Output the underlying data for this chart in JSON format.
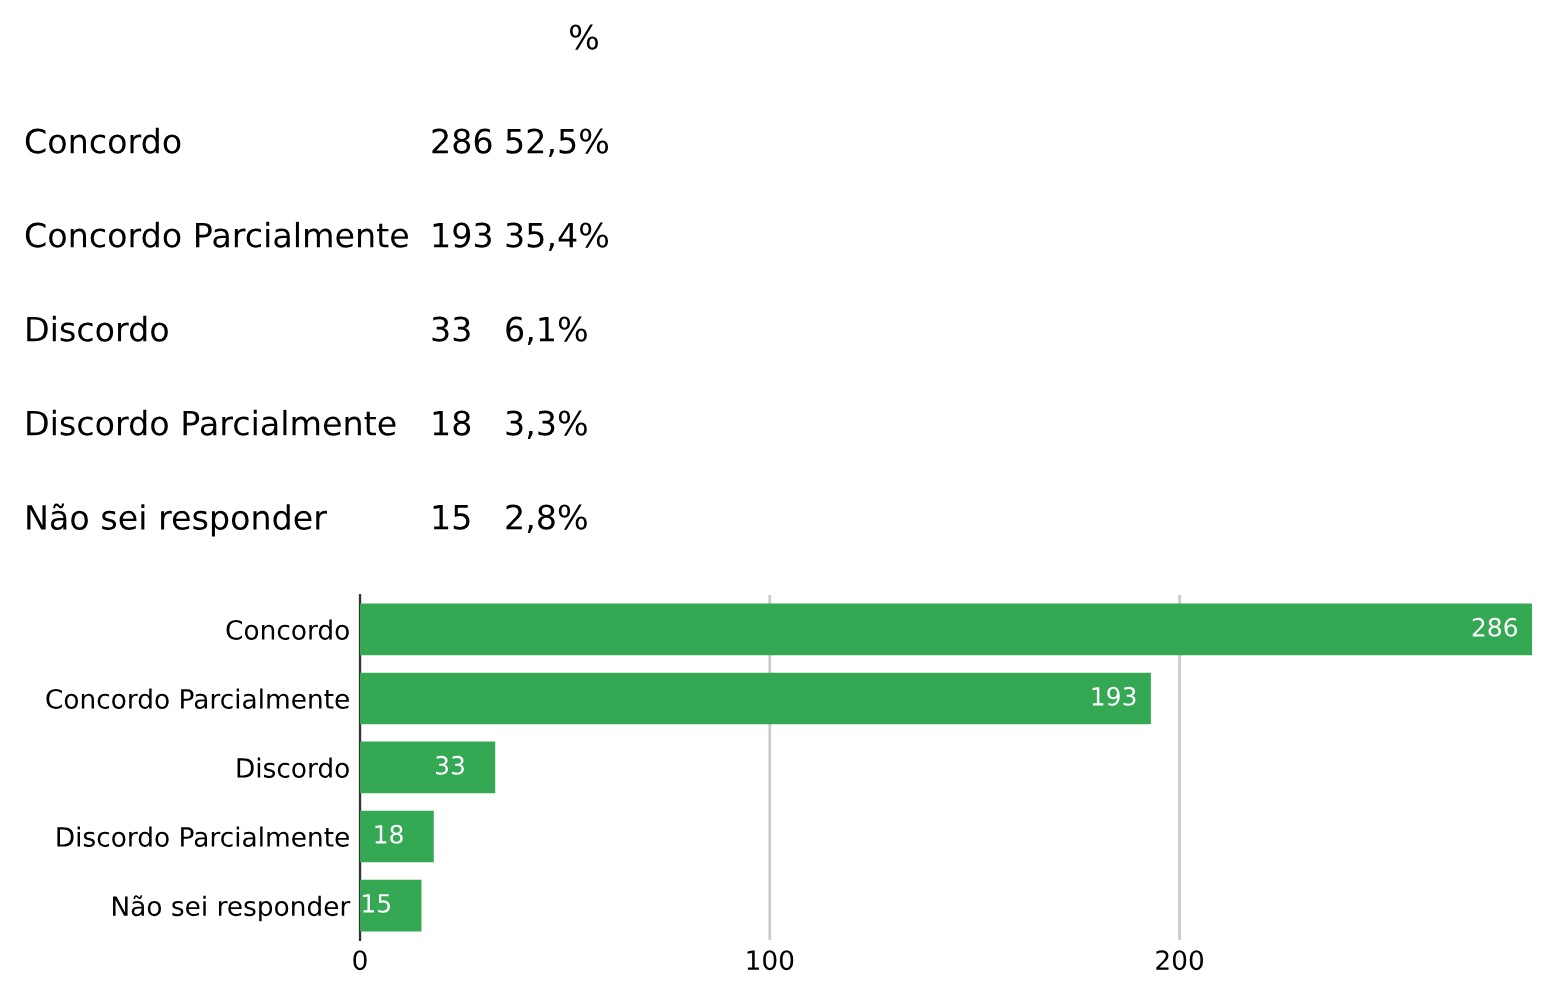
{
  "chart_data": [
    {
      "type": "other",
      "title": "%",
      "categories": [
        "Concordo",
        "Concordo Parcialmente",
        "Discordo",
        "Discordo Parcialmente",
        "Não sei responder"
      ],
      "values": [
        52.5,
        35.4,
        6.1,
        3.3,
        2.8
      ],
      "value_labels": [
        "52,5%",
        "35,4%",
        "6,1%",
        "3,3%",
        "2,8%"
      ],
      "annotations": [
        "286",
        "193",
        "33",
        "18",
        "15"
      ]
    },
    {
      "type": "bar",
      "orientation": "horizontal",
      "categories": [
        "Concordo",
        "Concordo Parcialmente",
        "Discordo",
        "Discordo Parcialmente",
        "Não sei responder"
      ],
      "values": [
        286,
        193,
        33,
        18,
        15
      ],
      "color": "#34a853",
      "xlim": [
        0,
        286
      ],
      "xticks": [
        0,
        100,
        200
      ],
      "grid": "x",
      "data_labels": true
    }
  ]
}
